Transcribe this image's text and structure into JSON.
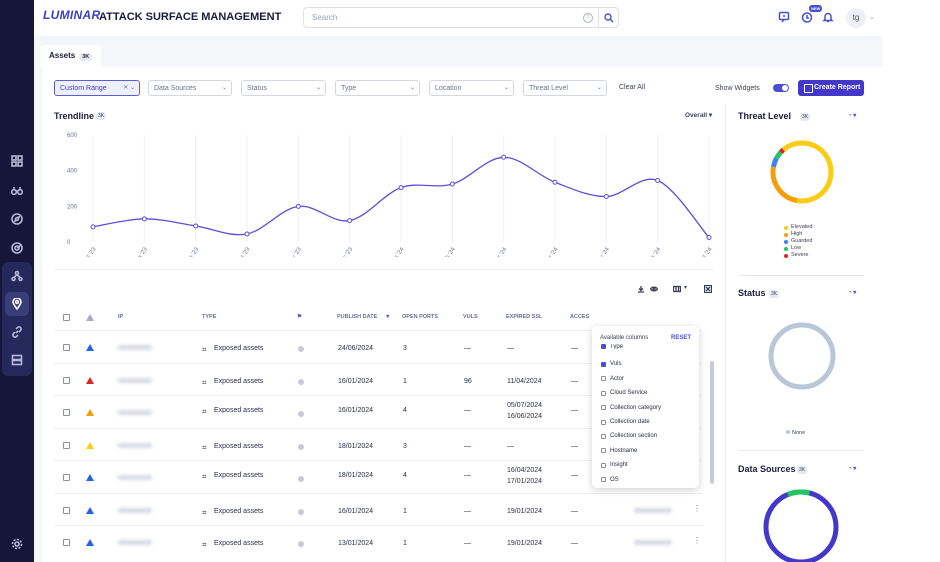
{
  "app": {
    "logo": "LUMINAR",
    "title": "ATTACK SURFACE MANAGEMENT"
  },
  "search": {
    "placeholder": "Search",
    "help": "?"
  },
  "topbar": {
    "new_badge": "NEW",
    "avatar": "tg"
  },
  "tab": {
    "label": "Assets",
    "count": "3K"
  },
  "filters": [
    {
      "label": "Custom Range",
      "active": true
    },
    {
      "label": "Data Sources"
    },
    {
      "label": "Status"
    },
    {
      "label": "Type"
    },
    {
      "label": "Location"
    },
    {
      "label": "Threat Level"
    }
  ],
  "toolbar": {
    "clear_all": "Clear All",
    "show_widgets": "Show Widgets",
    "create_report": "Create Report"
  },
  "trendline": {
    "title": "Trendline",
    "badge": "3K",
    "overall": "Overall"
  },
  "chart_data": {
    "type": "line",
    "x": [
      "Jul '23",
      "Aug '23",
      "Sep '23",
      "Oct '23",
      "Nov '23",
      "Dec '23",
      "Jan '24",
      "Feb '24",
      "Mar '24",
      "Apr '24",
      "May '24",
      "Jun '24",
      "Jul '24"
    ],
    "values": [
      85,
      130,
      90,
      45,
      200,
      120,
      305,
      325,
      475,
      335,
      255,
      345,
      25
    ],
    "yticks": [
      "600",
      "400",
      "200",
      "0"
    ],
    "ylim": [
      0,
      600
    ],
    "color": "#5b4fd6"
  },
  "table": {
    "headers": {
      "ip": "IP",
      "type": "TYPE",
      "publish": "PUBLISH DATE",
      "ports": "OPEN PORTS",
      "vuls": "VULS",
      "ssl": "EXPIRED SSL",
      "access": "ACCES"
    },
    "rows": [
      {
        "sev": "#2563eb",
        "type": "Exposed assets",
        "date": "24/06/2024",
        "ports": "3",
        "vuls": "—",
        "ssl1": "—",
        "ssl2": "",
        "access": "—"
      },
      {
        "sev": "#dc2626",
        "type": "Exposed assets",
        "date": "16/01/2024",
        "ports": "1",
        "vuls": "96",
        "ssl1": "11/04/2024",
        "ssl2": "",
        "access": "—"
      },
      {
        "sev": "#f59e0b",
        "type": "Exposed assets",
        "date": "16/01/2024",
        "ports": "4",
        "vuls": "—",
        "ssl1": "05/07/2024",
        "ssl2": "16/06/2024",
        "access": "—"
      },
      {
        "sev": "#facc15",
        "type": "Exposed assets",
        "date": "18/01/2024",
        "ports": "3",
        "vuls": "—",
        "ssl1": "—",
        "ssl2": "",
        "access": "—"
      },
      {
        "sev": "#2563eb",
        "type": "Exposed assets",
        "date": "18/01/2024",
        "ports": "4",
        "vuls": "—",
        "ssl1": "16/04/2024",
        "ssl2": "17/01/2024",
        "access": "—"
      },
      {
        "sev": "#2563eb",
        "type": "Exposed assets",
        "date": "16/01/2024",
        "ports": "1",
        "vuls": "—",
        "ssl1": "19/01/2024",
        "ssl2": "",
        "access": "—"
      },
      {
        "sev": "#2563eb",
        "type": "Exposed assets",
        "date": "13/01/2024",
        "ports": "1",
        "vuls": "—",
        "ssl1": "19/01/2024",
        "ssl2": "",
        "access": "—"
      }
    ]
  },
  "columns_popup": {
    "title": "Available columns",
    "reset": "RESET",
    "items": [
      {
        "label": "Type",
        "checked": true
      },
      {
        "label": "Vuls",
        "checked": true
      },
      {
        "label": "Actor",
        "checked": false
      },
      {
        "label": "Cloud Service",
        "checked": false
      },
      {
        "label": "Collection category",
        "checked": false
      },
      {
        "label": "Collection date",
        "checked": false
      },
      {
        "label": "Collection section",
        "checked": false
      },
      {
        "label": "Hostname",
        "checked": false
      },
      {
        "label": "Insight",
        "checked": false
      },
      {
        "label": "OS",
        "checked": false
      }
    ]
  },
  "widgets": {
    "threat": {
      "title": "Threat Level",
      "badge": "3K",
      "legend": [
        {
          "label": "Elevated",
          "color": "#facc15"
        },
        {
          "label": "High",
          "color": "#f59e0b"
        },
        {
          "label": "Guarded",
          "color": "#3b82f6"
        },
        {
          "label": "Low",
          "color": "#22c55e"
        },
        {
          "label": "Severe",
          "color": "#dc2626"
        }
      ],
      "segments": [
        0.64,
        0.25,
        0.05,
        0.04,
        0.02
      ]
    },
    "status": {
      "title": "Status",
      "badge": "3K",
      "legend_label": "None",
      "legend_color": "#b8c6d6"
    },
    "sources": {
      "title": "Data Sources",
      "badge": "3K"
    }
  }
}
